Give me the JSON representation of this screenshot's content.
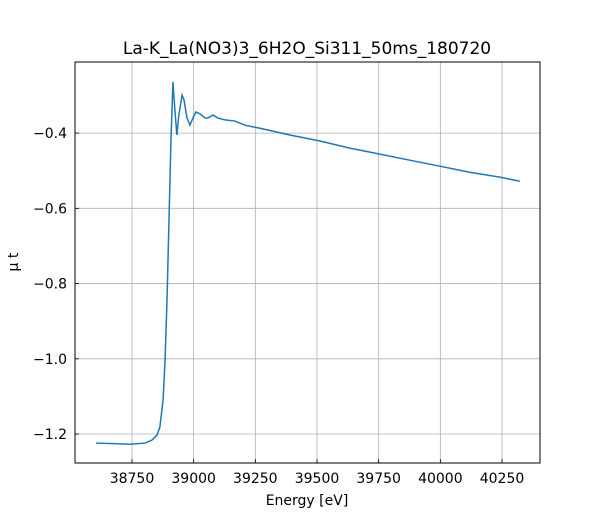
{
  "chart_data": {
    "type": "line",
    "title": "La-K_La(NO3)3_6H2O_Si311_50ms_180720",
    "xlabel": "Energy [eV]",
    "ylabel": "μ t",
    "x": [
      38604,
      38742,
      38803,
      38831,
      38851,
      38863,
      38876,
      38884,
      38892,
      38900,
      38908,
      38916,
      38924,
      38932,
      38940,
      38953,
      38961,
      38973,
      38985,
      38997,
      39009,
      39026,
      39046,
      39058,
      39078,
      39098,
      39127,
      39167,
      39208,
      39269,
      39390,
      39512,
      39633,
      39755,
      39876,
      39998,
      40119,
      40241,
      40322
    ],
    "series": [
      {
        "color": "#1f77b4",
        "values": [
          -1.224,
          -1.227,
          -1.224,
          -1.216,
          -1.203,
          -1.182,
          -1.11,
          -1.004,
          -0.844,
          -0.631,
          -0.419,
          -0.264,
          -0.339,
          -0.405,
          -0.352,
          -0.299,
          -0.312,
          -0.36,
          -0.379,
          -0.36,
          -0.344,
          -0.349,
          -0.36,
          -0.36,
          -0.352,
          -0.36,
          -0.365,
          -0.368,
          -0.379,
          -0.387,
          -0.405,
          -0.421,
          -0.44,
          -0.456,
          -0.472,
          -0.488,
          -0.504,
          -0.517,
          -0.528
        ]
      }
    ],
    "xlim": [
      38519,
      40404
    ],
    "xticks": [
      38750,
      39000,
      39250,
      39500,
      39750,
      40000,
      40250
    ],
    "ylim": [
      -1.277,
      -0.211
    ],
    "yticks": [
      {
        "value": -1.2,
        "label": "−1.2"
      },
      {
        "value": -1.0,
        "label": "−1.0"
      },
      {
        "value": -0.8,
        "label": "−0.8"
      },
      {
        "value": -0.6,
        "label": "−0.6"
      },
      {
        "value": -0.4,
        "label": "−0.4"
      }
    ],
    "grid": true
  }
}
